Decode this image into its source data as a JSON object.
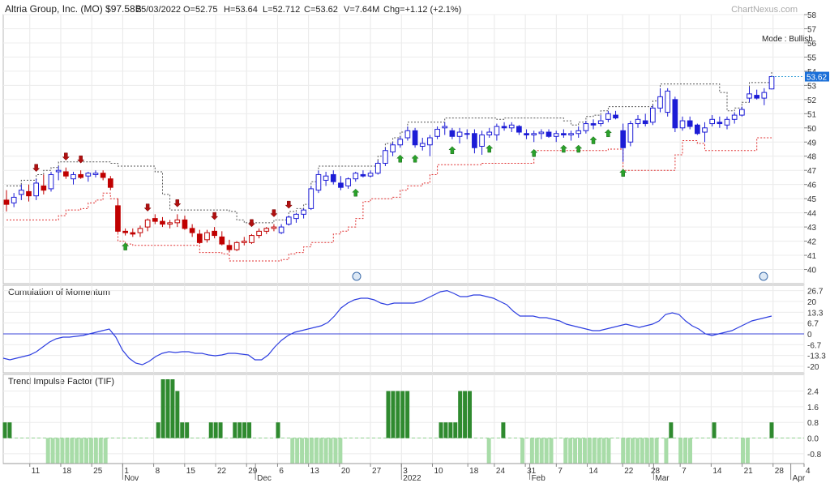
{
  "header": {
    "company": "Altria Group, Inc. (MO) $97.58B",
    "date": "25/03/2022",
    "open": "O=52.75",
    "high": "H=53.64",
    "low": "L=52.712",
    "close": "C=53.62",
    "volume": "V=7.64M",
    "change": "Chg=+1.12 (+2.1%)",
    "watermark": "ChartNexus.com"
  },
  "price_panel": {
    "mode_label": "Mode : Bullish",
    "last_price_tag": "53.62",
    "y_ticks": [
      "58",
      "57",
      "56",
      "55",
      "54",
      "53",
      "52",
      "51",
      "50",
      "49",
      "48",
      "47",
      "46",
      "45",
      "44",
      "43",
      "42",
      "41",
      "40"
    ]
  },
  "momentum_panel": {
    "title": "Cumulation of Momentum",
    "y_ticks": [
      "26.7",
      "20",
      "13.3",
      "6.7",
      "0",
      "-6.7",
      "-13.3",
      "-20"
    ]
  },
  "tif_panel": {
    "title": "Trend Impulse Factor (TIF)",
    "y_ticks": [
      "2.4",
      "1.6",
      "0.8",
      "0.0",
      "-0.8"
    ]
  },
  "x_axis": {
    "day_labels": [
      "11",
      "18",
      "25",
      "1",
      "8",
      "15",
      "22",
      "29",
      "6",
      "13",
      "20",
      "27",
      "3",
      "10",
      "18",
      "24",
      "31",
      "7",
      "14",
      "22",
      "28",
      "7",
      "14",
      "21",
      "28",
      "4"
    ],
    "month_labels": [
      "Nov",
      "Dec",
      "2022",
      "Feb",
      "Mar",
      "Apr"
    ]
  },
  "colors": {
    "bull": "#1c1cd6",
    "bear": "#c00000",
    "bull_stop": "#555555",
    "bear_stop": "#e03030",
    "momentum_line": "#2d3ee0",
    "tif_pos": "#2f8a2f",
    "tif_neg": "#a8dca8",
    "arrow_up": "#2aa12a",
    "arrow_down": "#b01010",
    "price_tag_bg": "#1a6fd8"
  },
  "chart_data": [
    {
      "type": "candlestick",
      "title": "Altria Group, Inc. (MO) $97.58B",
      "x_range": [
        "2021-10-05",
        "2022-04-04"
      ],
      "ylim": [
        39,
        58
      ],
      "x_dates": [
        "2021-10-11",
        "2021-10-18",
        "2021-10-25",
        "2021-11-01",
        "2021-11-08",
        "2021-11-15",
        "2021-11-22",
        "2021-11-29",
        "2021-12-06",
        "2021-12-13",
        "2021-12-20",
        "2021-12-27",
        "2022-01-03",
        "2022-01-10",
        "2022-01-18",
        "2022-01-24",
        "2022-01-31",
        "2022-02-07",
        "2022-02-14",
        "2022-02-22",
        "2022-02-28",
        "2022-03-07",
        "2022-03-14",
        "2022-03-21",
        "2022-03-28",
        "2022-04-04"
      ],
      "candles": [
        {
          "o": 44.9,
          "h": 45.6,
          "l": 44.1,
          "c": 44.6
        },
        {
          "o": 44.7,
          "h": 45.4,
          "l": 44.4,
          "c": 45.1
        },
        {
          "o": 45.3,
          "h": 46.0,
          "l": 44.9,
          "c": 45.6
        },
        {
          "o": 45.5,
          "h": 46.0,
          "l": 44.8,
          "c": 45.2
        },
        {
          "o": 45.2,
          "h": 46.4,
          "l": 44.9,
          "c": 46.1
        },
        {
          "o": 45.9,
          "h": 46.7,
          "l": 45.3,
          "c": 45.6
        },
        {
          "o": 45.7,
          "h": 46.9,
          "l": 45.5,
          "c": 46.7
        },
        {
          "o": 46.9,
          "h": 47.3,
          "l": 46.3,
          "c": 47.0
        },
        {
          "o": 46.9,
          "h": 47.2,
          "l": 46.4,
          "c": 46.6
        },
        {
          "o": 46.4,
          "h": 46.9,
          "l": 46.0,
          "c": 46.7
        },
        {
          "o": 46.7,
          "h": 47.0,
          "l": 46.4,
          "c": 46.5
        },
        {
          "o": 46.6,
          "h": 46.9,
          "l": 46.2,
          "c": 46.8
        },
        {
          "o": 46.7,
          "h": 47.0,
          "l": 46.5,
          "c": 46.8
        },
        {
          "o": 46.8,
          "h": 47.0,
          "l": 46.3,
          "c": 46.5
        },
        {
          "o": 46.4,
          "h": 46.6,
          "l": 45.6,
          "c": 45.8
        },
        {
          "o": 44.5,
          "h": 45.0,
          "l": 42.6,
          "c": 42.7
        },
        {
          "o": 42.7,
          "h": 42.9,
          "l": 42.4,
          "c": 42.6
        },
        {
          "o": 42.6,
          "h": 42.9,
          "l": 42.3,
          "c": 42.5
        },
        {
          "o": 42.6,
          "h": 43.1,
          "l": 42.3,
          "c": 42.9
        },
        {
          "o": 43.0,
          "h": 43.6,
          "l": 42.7,
          "c": 43.5
        },
        {
          "o": 43.6,
          "h": 43.9,
          "l": 43.2,
          "c": 43.4
        },
        {
          "o": 43.4,
          "h": 43.7,
          "l": 43.0,
          "c": 43.2
        },
        {
          "o": 43.2,
          "h": 43.5,
          "l": 42.9,
          "c": 43.3
        },
        {
          "o": 43.3,
          "h": 43.9,
          "l": 43.0,
          "c": 43.5
        },
        {
          "o": 43.5,
          "h": 43.8,
          "l": 42.8,
          "c": 42.9
        },
        {
          "o": 42.9,
          "h": 43.2,
          "l": 42.3,
          "c": 42.6
        },
        {
          "o": 42.5,
          "h": 42.8,
          "l": 41.8,
          "c": 41.9
        },
        {
          "o": 42.1,
          "h": 42.8,
          "l": 41.9,
          "c": 42.6
        },
        {
          "o": 42.7,
          "h": 43.0,
          "l": 42.2,
          "c": 42.4
        },
        {
          "o": 42.3,
          "h": 42.7,
          "l": 41.7,
          "c": 41.8
        },
        {
          "o": 41.7,
          "h": 42.1,
          "l": 41.2,
          "c": 41.4
        },
        {
          "o": 41.4,
          "h": 42.0,
          "l": 41.3,
          "c": 41.9
        },
        {
          "o": 41.9,
          "h": 42.3,
          "l": 41.7,
          "c": 42.0
        },
        {
          "o": 41.9,
          "h": 42.5,
          "l": 41.8,
          "c": 42.4
        },
        {
          "o": 42.4,
          "h": 42.9,
          "l": 42.2,
          "c": 42.7
        },
        {
          "o": 42.7,
          "h": 43.0,
          "l": 42.5,
          "c": 42.9
        },
        {
          "o": 42.9,
          "h": 43.2,
          "l": 42.7,
          "c": 43.0
        },
        {
          "o": 42.6,
          "h": 43.2,
          "l": 42.5,
          "c": 43.0
        },
        {
          "o": 43.2,
          "h": 43.8,
          "l": 43.1,
          "c": 43.7
        },
        {
          "o": 43.6,
          "h": 44.0,
          "l": 43.3,
          "c": 43.9
        },
        {
          "o": 43.9,
          "h": 44.3,
          "l": 43.6,
          "c": 44.2
        },
        {
          "o": 44.3,
          "h": 45.9,
          "l": 44.2,
          "c": 45.7
        },
        {
          "o": 45.6,
          "h": 47.0,
          "l": 45.4,
          "c": 46.7
        },
        {
          "o": 46.3,
          "h": 46.9,
          "l": 45.9,
          "c": 46.6
        },
        {
          "o": 46.7,
          "h": 47.0,
          "l": 46.0,
          "c": 46.2
        },
        {
          "o": 46.1,
          "h": 46.6,
          "l": 45.6,
          "c": 45.8
        },
        {
          "o": 45.9,
          "h": 46.5,
          "l": 45.7,
          "c": 46.4
        },
        {
          "o": 46.4,
          "h": 46.9,
          "l": 46.2,
          "c": 46.8
        },
        {
          "o": 46.7,
          "h": 47.0,
          "l": 46.5,
          "c": 46.6
        },
        {
          "o": 46.6,
          "h": 47.0,
          "l": 46.5,
          "c": 46.8
        },
        {
          "o": 46.8,
          "h": 47.7,
          "l": 46.7,
          "c": 47.5
        },
        {
          "o": 47.5,
          "h": 48.6,
          "l": 47.3,
          "c": 48.4
        },
        {
          "o": 48.3,
          "h": 49.0,
          "l": 48.0,
          "c": 48.8
        },
        {
          "o": 48.8,
          "h": 49.4,
          "l": 48.6,
          "c": 49.2
        },
        {
          "o": 49.3,
          "h": 50.1,
          "l": 49.1,
          "c": 49.8
        },
        {
          "o": 49.8,
          "h": 50.0,
          "l": 48.6,
          "c": 48.8
        },
        {
          "o": 48.7,
          "h": 49.3,
          "l": 48.4,
          "c": 48.9
        },
        {
          "o": 48.8,
          "h": 49.5,
          "l": 48.0,
          "c": 49.3
        },
        {
          "o": 49.4,
          "h": 50.1,
          "l": 49.2,
          "c": 49.9
        },
        {
          "o": 50.0,
          "h": 50.4,
          "l": 49.5,
          "c": 50.1
        },
        {
          "o": 49.8,
          "h": 50.0,
          "l": 49.2,
          "c": 49.4
        },
        {
          "o": 49.4,
          "h": 50.0,
          "l": 48.9,
          "c": 49.7
        },
        {
          "o": 49.6,
          "h": 49.9,
          "l": 49.2,
          "c": 49.6
        },
        {
          "o": 49.6,
          "h": 49.9,
          "l": 48.2,
          "c": 48.6
        },
        {
          "o": 48.7,
          "h": 49.8,
          "l": 48.1,
          "c": 49.5
        },
        {
          "o": 49.5,
          "h": 50.0,
          "l": 49.3,
          "c": 49.7
        },
        {
          "o": 49.5,
          "h": 50.3,
          "l": 49.1,
          "c": 50.1
        },
        {
          "o": 50.1,
          "h": 50.4,
          "l": 49.8,
          "c": 50.0
        },
        {
          "o": 50.0,
          "h": 50.4,
          "l": 49.7,
          "c": 50.2
        },
        {
          "o": 50.1,
          "h": 50.2,
          "l": 49.5,
          "c": 49.7
        },
        {
          "o": 49.6,
          "h": 49.9,
          "l": 49.2,
          "c": 49.5
        },
        {
          "o": 49.5,
          "h": 49.8,
          "l": 49.0,
          "c": 49.6
        },
        {
          "o": 49.6,
          "h": 49.9,
          "l": 49.2,
          "c": 49.7
        },
        {
          "o": 49.7,
          "h": 49.9,
          "l": 49.3,
          "c": 49.4
        },
        {
          "o": 49.4,
          "h": 49.8,
          "l": 49.0,
          "c": 49.6
        },
        {
          "o": 49.6,
          "h": 49.9,
          "l": 49.3,
          "c": 49.5
        },
        {
          "o": 49.5,
          "h": 49.8,
          "l": 49.1,
          "c": 49.6
        },
        {
          "o": 49.6,
          "h": 50.1,
          "l": 49.3,
          "c": 49.8
        },
        {
          "o": 49.8,
          "h": 50.5,
          "l": 49.6,
          "c": 50.3
        },
        {
          "o": 50.3,
          "h": 50.6,
          "l": 49.9,
          "c": 50.2
        },
        {
          "o": 50.3,
          "h": 50.9,
          "l": 50.1,
          "c": 50.5
        },
        {
          "o": 50.6,
          "h": 51.2,
          "l": 50.4,
          "c": 51.0
        },
        {
          "o": 50.9,
          "h": 51.2,
          "l": 50.6,
          "c": 50.7
        },
        {
          "o": 49.8,
          "h": 50.3,
          "l": 47.6,
          "c": 48.6
        },
        {
          "o": 49.0,
          "h": 50.5,
          "l": 48.7,
          "c": 50.3
        },
        {
          "o": 50.3,
          "h": 50.9,
          "l": 50.0,
          "c": 50.6
        },
        {
          "o": 50.5,
          "h": 51.0,
          "l": 50.1,
          "c": 50.3
        },
        {
          "o": 50.4,
          "h": 51.6,
          "l": 50.2,
          "c": 51.4
        },
        {
          "o": 51.4,
          "h": 52.8,
          "l": 51.1,
          "c": 52.2
        },
        {
          "o": 51.1,
          "h": 52.8,
          "l": 50.8,
          "c": 52.6
        },
        {
          "o": 52.0,
          "h": 52.2,
          "l": 49.7,
          "c": 50.0
        },
        {
          "o": 50.0,
          "h": 50.8,
          "l": 49.8,
          "c": 50.5
        },
        {
          "o": 50.5,
          "h": 50.8,
          "l": 49.9,
          "c": 50.1
        },
        {
          "o": 50.2,
          "h": 50.3,
          "l": 49.5,
          "c": 49.6
        },
        {
          "o": 49.7,
          "h": 50.4,
          "l": 49.0,
          "c": 50.0
        },
        {
          "o": 50.3,
          "h": 50.9,
          "l": 50.1,
          "c": 50.6
        },
        {
          "o": 50.4,
          "h": 50.8,
          "l": 50.0,
          "c": 50.3
        },
        {
          "o": 50.2,
          "h": 50.8,
          "l": 49.9,
          "c": 50.6
        },
        {
          "o": 50.6,
          "h": 51.1,
          "l": 50.3,
          "c": 50.9
        },
        {
          "o": 50.9,
          "h": 51.5,
          "l": 50.8,
          "c": 51.3
        },
        {
          "o": 52.1,
          "h": 52.9,
          "l": 51.8,
          "c": 52.4
        },
        {
          "o": 52.3,
          "h": 52.7,
          "l": 52.0,
          "c": 52.1
        },
        {
          "o": 52.1,
          "h": 52.8,
          "l": 51.6,
          "c": 52.5
        },
        {
          "o": 52.75,
          "h": 53.64,
          "l": 52.712,
          "c": 53.62
        }
      ],
      "up_arrows": [
        16,
        47,
        53,
        55,
        60,
        65,
        71,
        75,
        77,
        79,
        81,
        83
      ],
      "down_arrows": [
        4,
        8,
        10,
        19,
        23,
        28,
        33,
        36,
        38
      ]
    },
    {
      "type": "line",
      "title": "Cumulation of Momentum",
      "ylim": [
        -24,
        30
      ],
      "values": [
        -15,
        -16,
        -15,
        -14,
        -13,
        -11,
        -8,
        -5,
        -3,
        -2,
        -2,
        -1.5,
        -1,
        0,
        1,
        2,
        3,
        -2,
        -10,
        -15,
        -18,
        -19,
        -17,
        -14,
        -12,
        -11,
        -11.5,
        -11,
        -11,
        -12,
        -12,
        -13,
        -13.5,
        -13,
        -12,
        -12,
        -12.5,
        -13,
        -16,
        -16,
        -13,
        -8,
        -4,
        -1,
        1,
        2,
        3,
        4,
        5,
        7,
        11,
        16,
        19,
        21,
        22,
        22,
        21,
        19,
        18,
        19,
        19,
        19,
        19,
        20,
        22,
        24,
        26,
        26.7,
        25,
        23,
        23,
        24,
        24,
        23,
        22,
        20,
        18,
        14,
        11,
        11,
        11,
        10,
        10,
        9,
        8,
        6,
        5,
        4,
        3,
        2,
        2,
        3,
        4,
        5,
        6,
        5,
        4,
        5,
        6,
        8,
        12,
        13,
        12,
        8,
        5,
        3,
        0,
        -1,
        0,
        1,
        2,
        4,
        6,
        8,
        9,
        10,
        11
      ]
    },
    {
      "type": "bar",
      "title": "Trend Impulse Factor (TIF)",
      "ylim": [
        -1.3,
        3.0
      ],
      "values": [
        0.8,
        0.8,
        0,
        0,
        0,
        0,
        0,
        0,
        0,
        -1.3,
        -1.3,
        -1.3,
        -1.3,
        -1.3,
        -1.3,
        -1.3,
        -1.3,
        -1.3,
        -1.3,
        -1.3,
        -1.3,
        -1.3,
        0,
        0,
        0,
        0,
        0,
        0,
        0,
        0,
        0,
        0,
        0.8,
        3.0,
        3.0,
        3.0,
        2.4,
        0.8,
        0.8,
        0,
        0,
        0,
        0,
        0.8,
        0.8,
        0.8,
        0,
        0,
        0.8,
        0.8,
        0.8,
        0.8,
        0,
        0,
        0,
        0,
        0,
        0.8,
        0,
        0,
        -1.3,
        -1.3,
        -1.3,
        -1.3,
        -1.3,
        -1.3,
        -1.3,
        -1.3,
        -1.3,
        -1.3,
        -1.3,
        0,
        0,
        0,
        0,
        0,
        0,
        0,
        0,
        0,
        2.4,
        2.4,
        2.4,
        2.4,
        2.4,
        0,
        0,
        0,
        0,
        0,
        0,
        0.8,
        0.8,
        0.8,
        0.8,
        2.4,
        2.4,
        2.4,
        0,
        0,
        0,
        -1.3,
        0,
        0,
        0.8,
        0,
        0,
        0,
        -1.3,
        0,
        -1.3,
        -1.3,
        -1.3,
        -1.3,
        -1.3,
        0,
        0,
        -1.3,
        -1.3,
        -1.3,
        -1.3,
        -1.3,
        -1.3,
        -1.3,
        -1.3,
        -1.3,
        -1.3,
        0,
        0,
        -1.3,
        -1.3,
        -1.3,
        -1.3,
        -1.3,
        -1.3,
        -1.3,
        -1.3,
        0,
        -1.3,
        0.8,
        0,
        -1.3,
        -1.3,
        -1.3,
        0,
        0,
        0,
        0,
        0.8,
        0,
        0,
        0,
        0,
        0,
        -1.3,
        -1.3,
        0,
        0,
        0,
        0,
        0.8
      ]
    }
  ]
}
